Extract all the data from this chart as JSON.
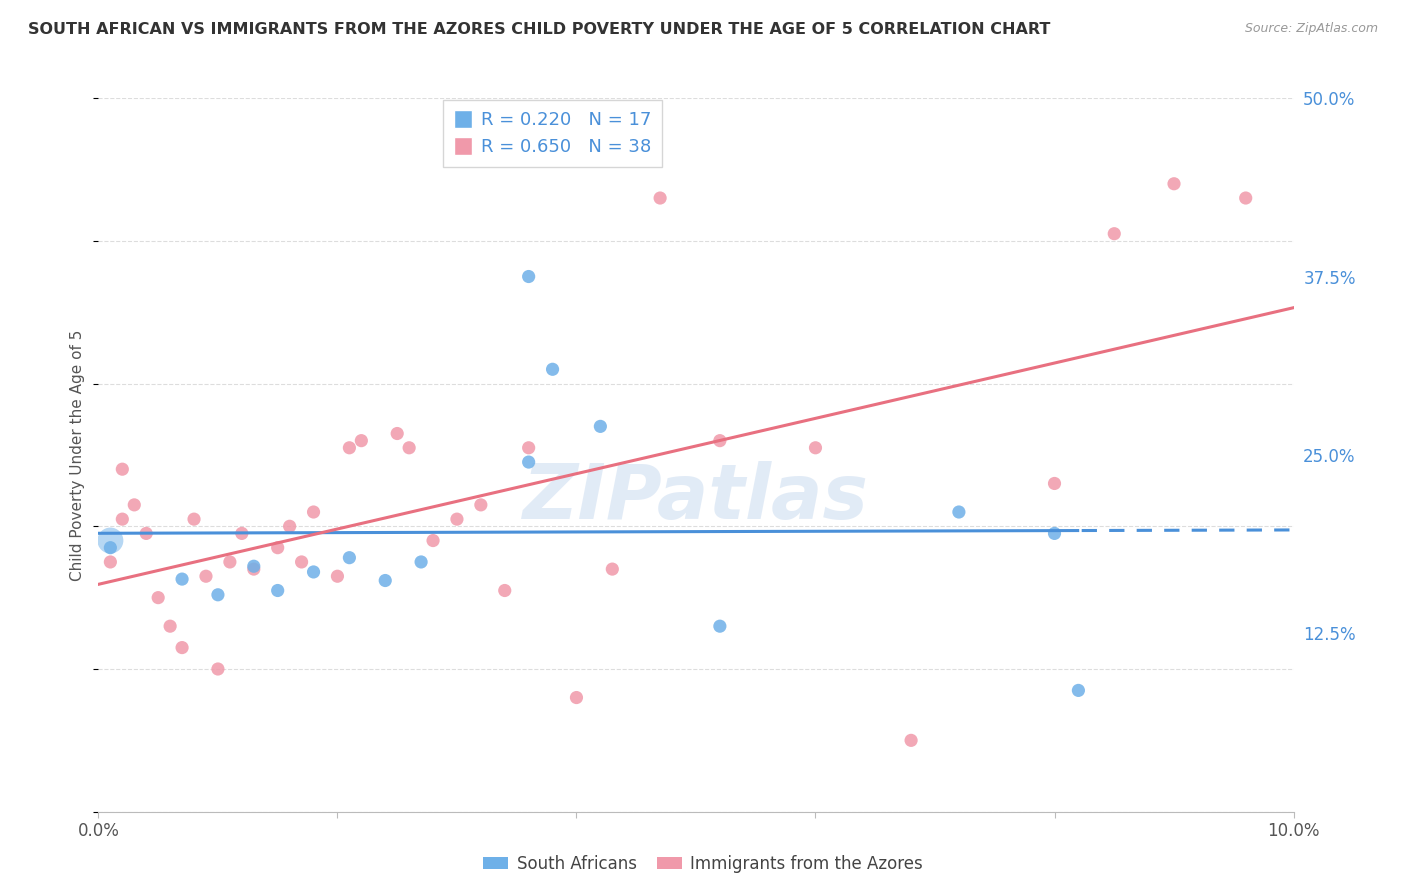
{
  "title": "SOUTH AFRICAN VS IMMIGRANTS FROM THE AZORES CHILD POVERTY UNDER THE AGE OF 5 CORRELATION CHART",
  "source": "Source: ZipAtlas.com",
  "ylabel": "Child Poverty Under the Age of 5",
  "xmin": 0.0,
  "xmax": 0.1,
  "ymin": 0.0,
  "ymax": 0.5,
  "yticks": [
    0.0,
    0.125,
    0.25,
    0.375,
    0.5
  ],
  "ytick_labels": [
    "",
    "12.5%",
    "25.0%",
    "37.5%",
    "50.0%"
  ],
  "xticks": [
    0.0,
    0.02,
    0.04,
    0.06,
    0.08,
    0.1
  ],
  "xtick_labels": [
    "0.0%",
    "",
    "",
    "",
    "",
    "10.0%"
  ],
  "blue_R": 0.22,
  "blue_N": 17,
  "pink_R": 0.65,
  "pink_N": 38,
  "blue_color": "#6EB0E8",
  "pink_color": "#F099AA",
  "trend_blue": "#4A90D9",
  "trend_pink": "#E87080",
  "legend_blue_label": "South Africans",
  "legend_pink_label": "Immigrants from the Azores",
  "blue_scatter_x": [
    0.001,
    0.007,
    0.01,
    0.013,
    0.015,
    0.018,
    0.021,
    0.024,
    0.027,
    0.036,
    0.038,
    0.052,
    0.072,
    0.08,
    0.082,
    0.036,
    0.042
  ],
  "blue_scatter_y": [
    0.185,
    0.163,
    0.152,
    0.172,
    0.155,
    0.168,
    0.178,
    0.162,
    0.175,
    0.375,
    0.31,
    0.13,
    0.21,
    0.195,
    0.085,
    0.245,
    0.27
  ],
  "pink_scatter_x": [
    0.001,
    0.002,
    0.002,
    0.003,
    0.004,
    0.005,
    0.006,
    0.007,
    0.008,
    0.009,
    0.01,
    0.011,
    0.012,
    0.013,
    0.015,
    0.016,
    0.017,
    0.018,
    0.02,
    0.021,
    0.022,
    0.025,
    0.026,
    0.028,
    0.03,
    0.032,
    0.034,
    0.036,
    0.04,
    0.043,
    0.047,
    0.052,
    0.06,
    0.068,
    0.08,
    0.085,
    0.09,
    0.096
  ],
  "pink_scatter_y": [
    0.175,
    0.24,
    0.205,
    0.215,
    0.195,
    0.15,
    0.13,
    0.115,
    0.205,
    0.165,
    0.1,
    0.175,
    0.195,
    0.17,
    0.185,
    0.2,
    0.175,
    0.21,
    0.165,
    0.255,
    0.26,
    0.265,
    0.255,
    0.19,
    0.205,
    0.215,
    0.155,
    0.255,
    0.08,
    0.17,
    0.43,
    0.26,
    0.255,
    0.05,
    0.23,
    0.405,
    0.44,
    0.43
  ],
  "watermark": "ZIPatlas",
  "background_color": "#FFFFFF",
  "grid_color": "#DDDDDD"
}
